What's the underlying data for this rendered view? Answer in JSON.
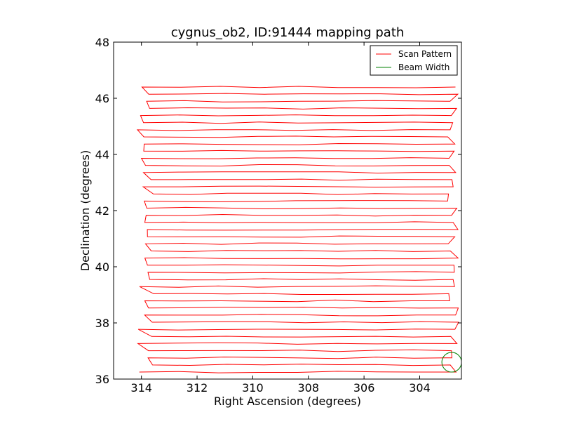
{
  "chart_data": {
    "type": "line",
    "title": "cygnus_ob2, ID:91444 mapping path",
    "xlabel": "Right Ascension (degrees)",
    "ylabel": "Declination (degrees)",
    "xlim": [
      315,
      302.5
    ],
    "ylim": [
      36,
      48
    ],
    "x_inverted": true,
    "x_ticks": [
      314,
      312,
      310,
      308,
      306,
      304
    ],
    "x_tick_labels": [
      "314",
      "312",
      "310",
      "308",
      "306",
      "304"
    ],
    "y_ticks": [
      36,
      38,
      40,
      42,
      44,
      46,
      48
    ],
    "y_tick_labels": [
      "36",
      "38",
      "40",
      "42",
      "44",
      "46",
      "48"
    ],
    "grid": false,
    "legend_position": "top-right",
    "series": [
      {
        "name": "Scan Pattern",
        "color": "#ff0000",
        "kind": "raster-scan",
        "dec_range": [
          36.25,
          46.4
        ],
        "ra_range": [
          313.9,
          302.6
        ],
        "num_rows": 41
      },
      {
        "name": "Beam Width",
        "color": "#008000",
        "kind": "circle",
        "center": [
          302.85,
          36.6
        ],
        "radius_deg": 0.35
      }
    ]
  }
}
